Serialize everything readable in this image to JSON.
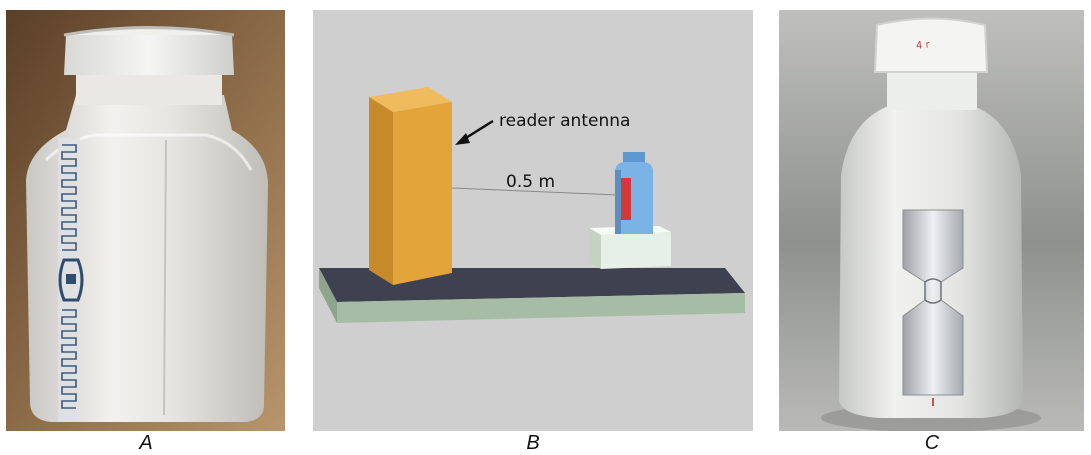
{
  "panels": {
    "a": {
      "label": "A"
    },
    "b": {
      "label": "B",
      "antenna_label": "reader antenna",
      "distance_label": "0.5 m"
    },
    "c": {
      "label": "C"
    }
  },
  "colors": {
    "antenna": "#e3a43a",
    "tag": "#d23a3a",
    "bottle_b": "#7ab3e6",
    "stand": "#e7f0e6",
    "base_top": "#3d4150",
    "base_side": "#a6bca4"
  }
}
